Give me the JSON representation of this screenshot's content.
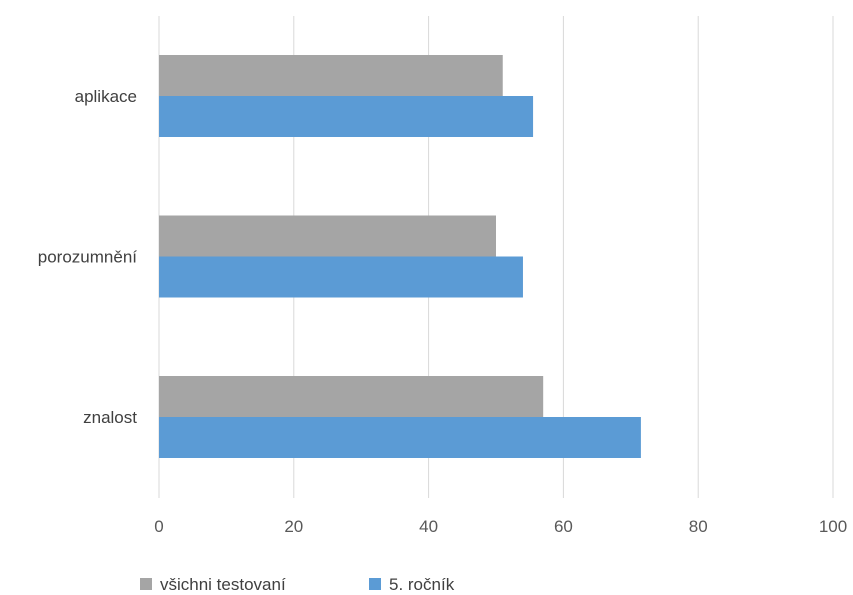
{
  "chart_data": {
    "type": "bar",
    "orientation": "horizontal",
    "categories": [
      "aplikace",
      "porozumnění",
      "znalost"
    ],
    "series": [
      {
        "name": "všichni testovaní",
        "color": "#a5a5a5",
        "values": [
          51,
          50,
          57
        ]
      },
      {
        "name": "5. ročník",
        "color": "#5b9bd5",
        "values": [
          55.5,
          54,
          71.5
        ]
      }
    ],
    "xlim": [
      0,
      100
    ],
    "x_ticks": [
      "0",
      "20",
      "40",
      "60",
      "80",
      "100"
    ],
    "grid": "vertical",
    "gridline_color": "#d9d9d9",
    "legend_position": "bottom-left"
  }
}
